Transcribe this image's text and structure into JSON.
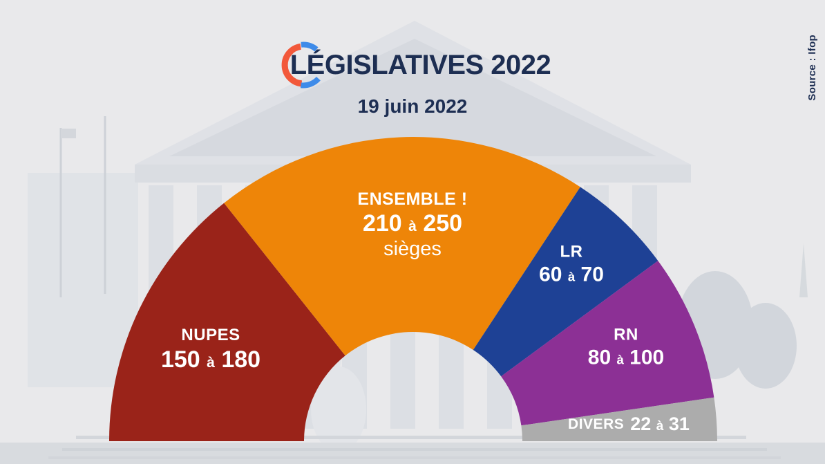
{
  "header": {
    "title": "LÉGISLATIVES 2022",
    "subtitle": "19 juin 2022",
    "source": "Source : Ifop"
  },
  "logo": {
    "arc_red_color": "#f2583a",
    "arc_blue_color": "#3e8be9"
  },
  "colors": {
    "background": "#e9e9eb",
    "title_text": "#1d2e52",
    "segment_label_text": "#ffffff"
  },
  "chart_data": {
    "type": "half-donut",
    "orientation": "semicircle-180-degrees",
    "a_word": "à",
    "unit_label": "sièges",
    "series": [
      {
        "slug": "nupes",
        "label": "NUPES",
        "range_min": 150,
        "range_max": 180,
        "color": "#9a2319"
      },
      {
        "slug": "ensemble",
        "label": "ENSEMBLE !",
        "range_min": 210,
        "range_max": 250,
        "color": "#ee8508"
      },
      {
        "slug": "lr",
        "label": "LR",
        "range_min": 60,
        "range_max": 70,
        "color": "#1e4195"
      },
      {
        "slug": "rn",
        "label": "RN",
        "range_min": 80,
        "range_max": 100,
        "color": "#8c3095"
      },
      {
        "slug": "divers",
        "label": "DIVERS",
        "range_min": 22,
        "range_max": 31,
        "color": "#acacac"
      }
    ]
  }
}
